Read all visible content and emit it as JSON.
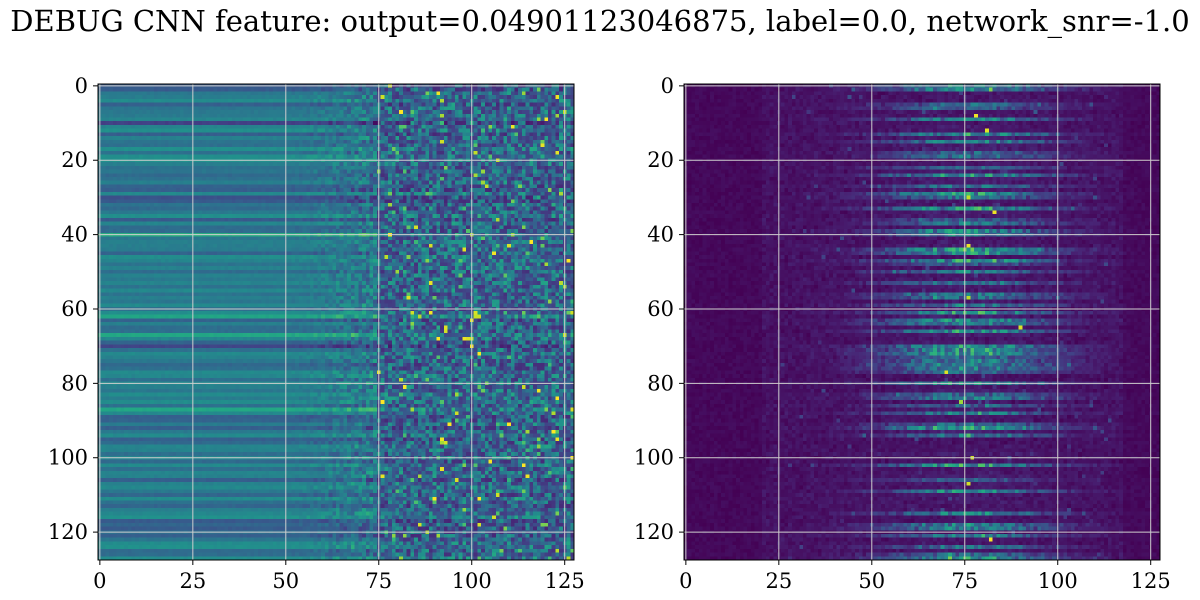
{
  "figure": {
    "title": "DEBUG CNN feature: output=0.04901123046875, label=0.0, network_snr=-1.0"
  },
  "colormap": "viridis",
  "chart_data": [
    {
      "type": "heatmap",
      "name": "left-panel",
      "rows": 128,
      "cols": 128,
      "title": "",
      "xlabel": "",
      "ylabel": "",
      "xlim": [
        -0.5,
        127.5
      ],
      "ylim": [
        127.5,
        -0.5
      ],
      "xticks": [
        0,
        25,
        50,
        75,
        100,
        125
      ],
      "yticks": [
        0,
        20,
        40,
        60,
        80,
        100,
        120
      ],
      "grid": true,
      "pattern": "left half low-varying horizontal bands (dark teal/blue), right half (x>75) high-variance noise with bright yellow-green speckles, bright spots near rows 60-70 around x=85-110"
    },
    {
      "type": "heatmap",
      "name": "right-panel",
      "rows": 128,
      "cols": 128,
      "title": "",
      "xlabel": "",
      "ylabel": "",
      "xlim": [
        -0.5,
        127.5
      ],
      "ylim": [
        127.5,
        -0.5
      ],
      "xticks": [
        0,
        25,
        50,
        75,
        100,
        125
      ],
      "yticks": [
        0,
        20,
        40,
        60,
        80,
        100,
        120
      ],
      "grid": true,
      "pattern": "mostly dark purple background, activations concentrated in a vertical band around x=60-100 centered near x=75, scattered green/yellow speckles"
    }
  ]
}
